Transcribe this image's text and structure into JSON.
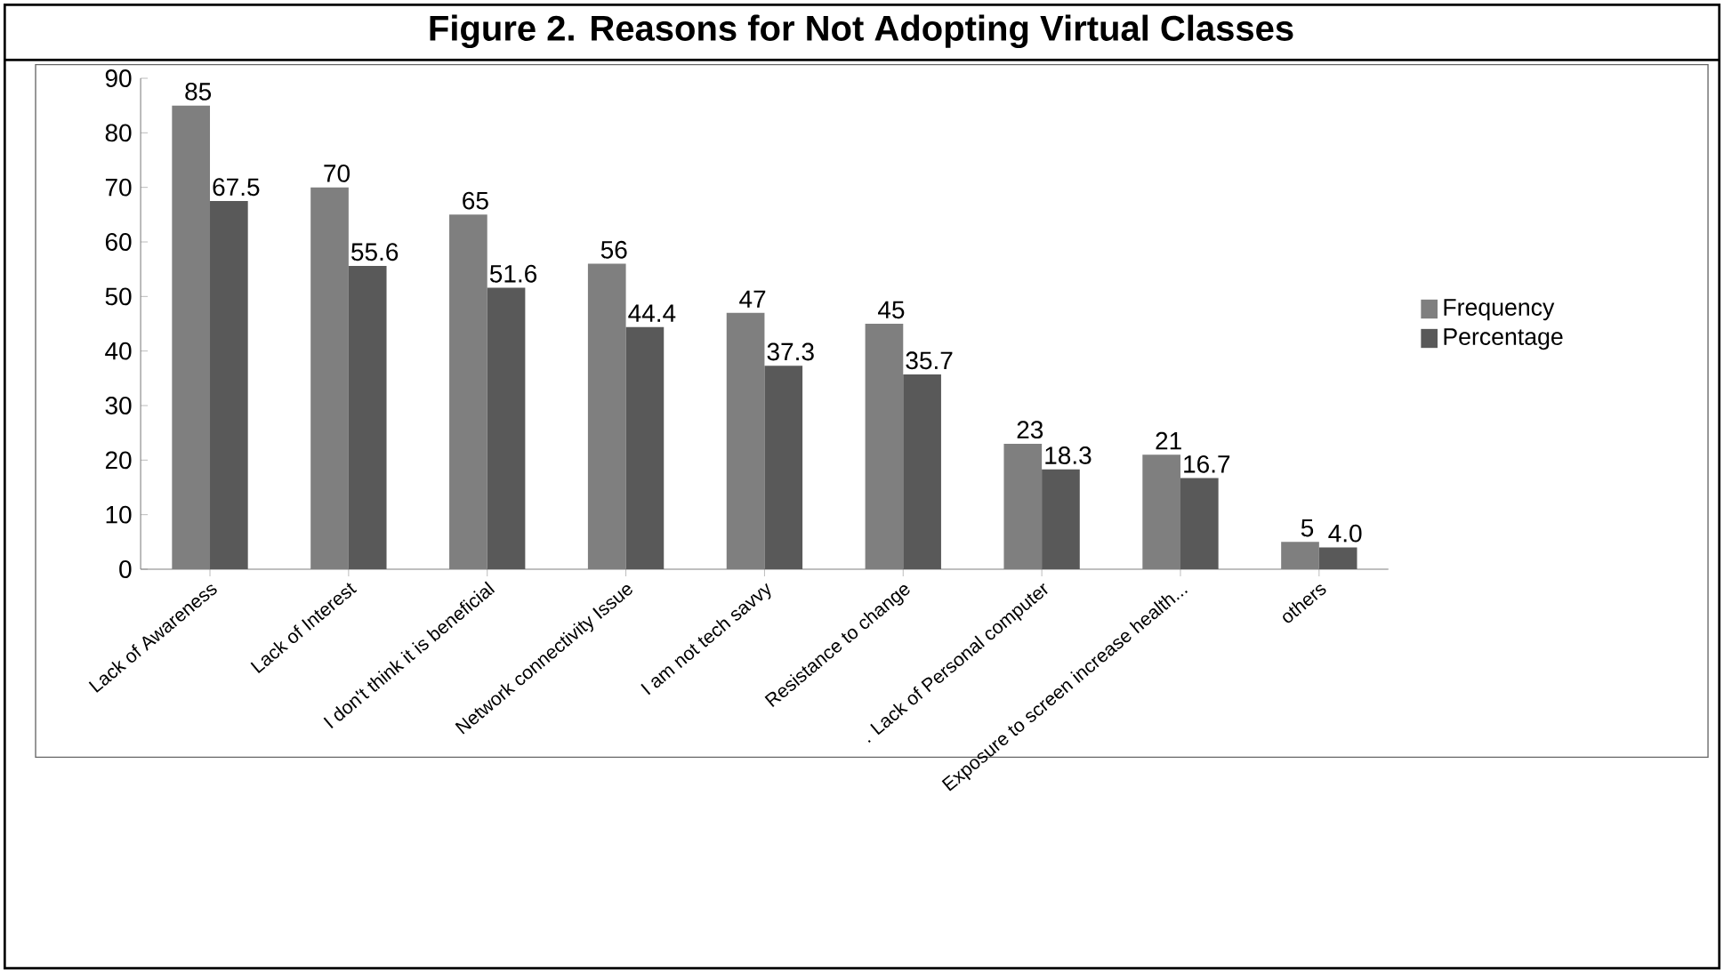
{
  "chart_data": {
    "type": "bar",
    "title": "Figure 2. Reasons for Not Adopting Virtual Classes",
    "categories": [
      "Lack of Awareness",
      "Lack of Interest",
      "I don't think it is beneficial",
      "Network connectivity Issue",
      "I am not tech savvy",
      "Resistance to change",
      ". Lack of Personal computer",
      "Exposure to screen increase health...",
      "others"
    ],
    "series": [
      {
        "name": "Frequency",
        "color": "#7f7f7f",
        "values": [
          85,
          70,
          65,
          56,
          47,
          45,
          23,
          21,
          5
        ],
        "value_labels": [
          "85",
          "70",
          "65",
          "56",
          "47",
          "45",
          "23",
          "21",
          "5"
        ]
      },
      {
        "name": "Percentage",
        "color": "#595959",
        "values": [
          67.5,
          55.6,
          51.6,
          44.4,
          37.3,
          35.7,
          18.3,
          16.7,
          4.0
        ],
        "value_labels": [
          "67.5",
          "55.6",
          "51.6",
          "44.4",
          "37.3",
          "35.7",
          "18.3",
          "16.7",
          "4.0"
        ]
      }
    ],
    "ylim": [
      0,
      90
    ],
    "yticks": [
      0,
      10,
      20,
      30,
      40,
      50,
      60,
      70,
      80,
      90
    ],
    "legend": "right"
  }
}
